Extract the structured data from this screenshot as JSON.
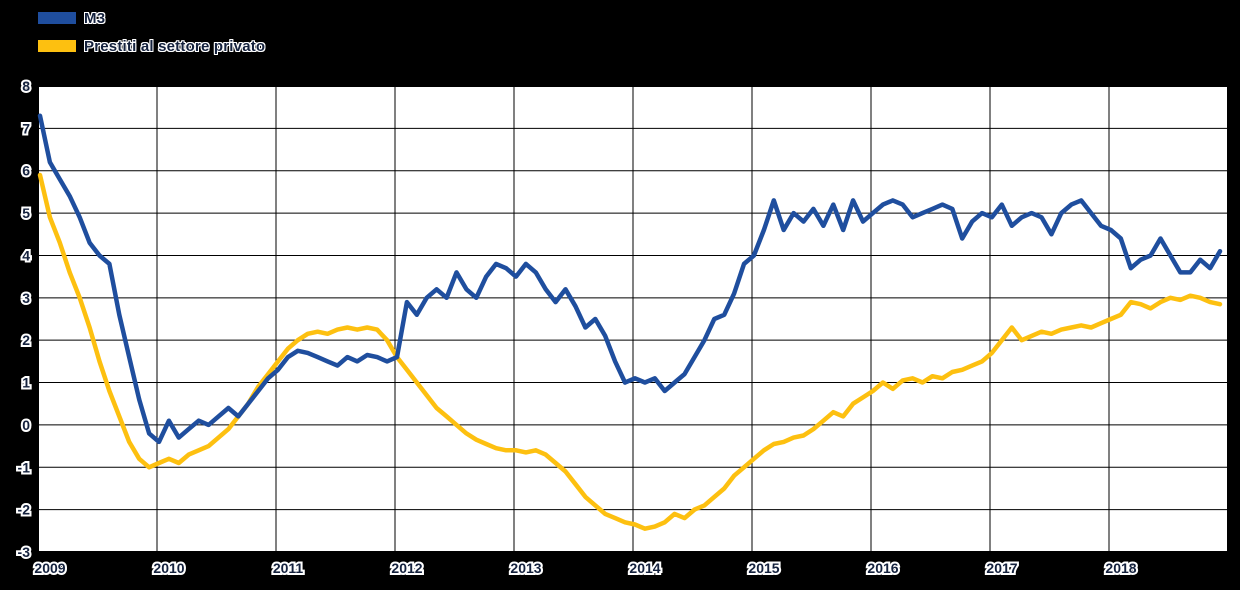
{
  "chart_data": {
    "type": "line",
    "title": "",
    "legend_position": "top-left",
    "grid": true,
    "grid_color": "#000000",
    "plot_bg": "#ffffff",
    "x_axis": {
      "start": "2009-01",
      "end": "2018-12",
      "tick_labels": [
        "2009",
        "2010",
        "2011",
        "2012",
        "2013",
        "2014",
        "2015",
        "2016",
        "2017",
        "2018"
      ]
    },
    "y_axis": {
      "min": -3,
      "max": 8,
      "tick_labels": [
        "8",
        "7",
        "6",
        "5",
        "4",
        "3",
        "2",
        "1",
        "0",
        "-1",
        "-2",
        "-3"
      ]
    },
    "series": [
      {
        "name": "M3",
        "color": "#1F4E9E",
        "frequency": "monthly",
        "values": [
          7.3,
          6.2,
          5.8,
          5.4,
          4.9,
          4.3,
          4.0,
          3.8,
          2.6,
          1.6,
          0.6,
          -0.2,
          -0.4,
          0.1,
          -0.3,
          -0.1,
          0.1,
          0.0,
          0.2,
          0.4,
          0.2,
          0.5,
          0.8,
          1.1,
          1.3,
          1.6,
          1.75,
          1.7,
          1.6,
          1.5,
          1.4,
          1.6,
          1.5,
          1.65,
          1.6,
          1.5,
          1.6,
          2.9,
          2.6,
          3.0,
          3.2,
          3.0,
          3.6,
          3.2,
          3.0,
          3.5,
          3.8,
          3.7,
          3.5,
          3.8,
          3.6,
          3.2,
          2.9,
          3.2,
          2.8,
          2.3,
          2.5,
          2.1,
          1.5,
          1.0,
          1.1,
          1.0,
          1.1,
          0.8,
          1.0,
          1.2,
          1.6,
          2.0,
          2.5,
          2.6,
          3.1,
          3.8,
          4.0,
          4.6,
          5.3,
          4.6,
          5.0,
          4.8,
          5.1,
          4.7,
          5.2,
          4.6,
          5.3,
          4.8,
          5.0,
          5.2,
          5.3,
          5.2,
          4.9,
          5.0,
          5.1,
          5.2,
          5.1,
          4.4,
          4.8,
          5.0,
          4.9,
          5.2,
          4.7,
          4.9,
          5.0,
          4.9,
          4.5,
          5.0,
          5.2,
          5.3,
          5.0,
          4.7,
          4.6,
          4.4,
          3.7,
          3.9,
          4.0,
          4.4,
          4.0,
          3.6,
          3.6,
          3.9,
          3.7,
          4.1
        ]
      },
      {
        "name": "Prestiti al settore privato",
        "color": "#FDC010",
        "frequency": "monthly",
        "values": [
          5.9,
          4.9,
          4.3,
          3.6,
          3.0,
          2.3,
          1.5,
          0.8,
          0.2,
          -0.4,
          -0.8,
          -1.0,
          -0.9,
          -0.8,
          -0.9,
          -0.7,
          -0.6,
          -0.5,
          -0.3,
          -0.1,
          0.2,
          0.5,
          0.9,
          1.2,
          1.5,
          1.8,
          2.0,
          2.15,
          2.2,
          2.15,
          2.25,
          2.3,
          2.25,
          2.3,
          2.25,
          2.0,
          1.6,
          1.3,
          1.0,
          0.7,
          0.4,
          0.2,
          0.0,
          -0.2,
          -0.35,
          -0.45,
          -0.55,
          -0.6,
          -0.6,
          -0.65,
          -0.6,
          -0.7,
          -0.9,
          -1.1,
          -1.4,
          -1.7,
          -1.9,
          -2.1,
          -2.2,
          -2.3,
          -2.35,
          -2.45,
          -2.4,
          -2.3,
          -2.1,
          -2.2,
          -2.0,
          -1.9,
          -1.7,
          -1.5,
          -1.2,
          -1.0,
          -0.8,
          -0.6,
          -0.45,
          -0.4,
          -0.3,
          -0.25,
          -0.1,
          0.1,
          0.3,
          0.2,
          0.5,
          0.65,
          0.8,
          1.0,
          0.85,
          1.05,
          1.1,
          1.0,
          1.15,
          1.1,
          1.25,
          1.3,
          1.4,
          1.5,
          1.7,
          2.0,
          2.3,
          2.0,
          2.1,
          2.2,
          2.15,
          2.25,
          2.3,
          2.35,
          2.3,
          2.4,
          2.5,
          2.6,
          2.9,
          2.85,
          2.75,
          2.9,
          3.0,
          2.95,
          3.05,
          3.0,
          2.9,
          2.85
        ]
      }
    ]
  }
}
